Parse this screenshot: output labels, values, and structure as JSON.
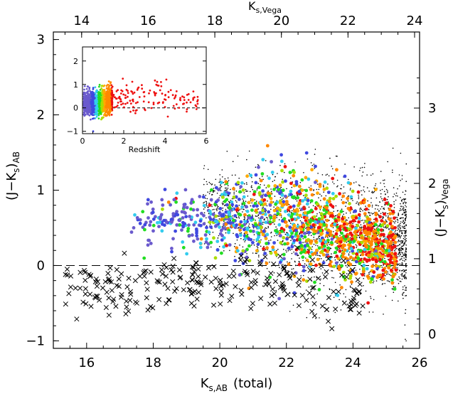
{
  "chart_data": [
    {
      "type": "scatter",
      "role": "main",
      "xlabel": "K",
      "xlabel_sub": "s,AB",
      "xlabel_suffix": "(total)",
      "ylabel": "(J−K",
      "ylabel_sub": "s",
      "ylabel_close": ")",
      "ylabel_sub2": "AB",
      "xlim": [
        15,
        26
      ],
      "ylim": [
        -1.1,
        3.1
      ],
      "xticks": [
        "16",
        "18",
        "20",
        "22",
        "24",
        "26"
      ],
      "yticks": [
        "−1",
        "0",
        "1",
        "2",
        "3"
      ],
      "top_axis": {
        "label": "K",
        "label_sub": "s,Vega",
        "offset_from_bottom_axis": -1.85,
        "ticks": [
          "14",
          "16",
          "18",
          "20",
          "22",
          "24"
        ]
      },
      "right_axis": {
        "label": "(J−K",
        "label_sub": "s",
        "label_close": ")",
        "label_sub2": "Vega",
        "offset_from_left_axis": 0.91,
        "ticks": [
          "0",
          "1",
          "2",
          "3"
        ]
      },
      "reference_line_y": 0,
      "series": [
        {
          "marker": "small black dot",
          "color": "#000000",
          "count": 2000,
          "x_range": [
            19.5,
            25.6
          ],
          "y_mean": [
            [
              20,
              0.8
            ],
            [
              22,
              0.5
            ],
            [
              24,
              0.4
            ],
            [
              25.5,
              0.3
            ]
          ],
          "y_spread": [
            [
              20,
              0.35
            ],
            [
              22,
              0.55
            ],
            [
              24,
              0.6
            ],
            [
              25.5,
              0.55
            ]
          ],
          "y_clip": [
            -1.0,
            2.7
          ]
        },
        {
          "marker": "colored filled circle",
          "color_by": "redshift",
          "count": 1300,
          "x_range": [
            17.2,
            25.3
          ],
          "y_mean": [
            [
              18,
              0.55
            ],
            [
              20,
              0.65
            ],
            [
              22,
              0.6
            ],
            [
              24,
              0.35
            ],
            [
              25,
              0.25
            ]
          ],
          "y_spread": [
            [
              18,
              0.25
            ],
            [
              20,
              0.35
            ],
            [
              22,
              0.45
            ],
            [
              24,
              0.4
            ],
            [
              25,
              0.35
            ]
          ],
          "y_clip": [
            -0.7,
            2.1
          ]
        },
        {
          "marker": "black x",
          "color": "#000000",
          "count": 260,
          "x_range": [
            15.2,
            24.3
          ],
          "y_mean": [
            [
              15.5,
              -0.25
            ],
            [
              18,
              -0.3
            ],
            [
              20.5,
              -0.2
            ],
            [
              23,
              -0.25
            ],
            [
              24.2,
              -0.5
            ]
          ],
          "y_spread": [
            [
              15.5,
              0.25
            ],
            [
              18,
              0.22
            ],
            [
              20.5,
              0.2
            ],
            [
              23,
              0.25
            ],
            [
              24.2,
              0.3
            ]
          ],
          "y_clip": [
            -1.0,
            0.3
          ]
        }
      ],
      "redshift_colormap": [
        {
          "z_max": 0.4,
          "color": "#6a5acd"
        },
        {
          "z_max": 0.6,
          "color": "#3f48e0"
        },
        {
          "z_max": 0.75,
          "color": "#33ccee"
        },
        {
          "z_max": 0.9,
          "color": "#22dd22"
        },
        {
          "z_max": 1.0,
          "color": "#aadd00"
        },
        {
          "z_max": 1.1,
          "color": "#ffaa00"
        },
        {
          "z_max": 1.4,
          "color": "#ff8800"
        },
        {
          "z_max": 10,
          "color": "#ee1111"
        }
      ]
    },
    {
      "type": "scatter",
      "role": "inset",
      "xlabel": "Redshift",
      "xlim": [
        0,
        6
      ],
      "ylim": [
        -1.1,
        2.6
      ],
      "xticks": [
        "0",
        "2",
        "4",
        "6"
      ],
      "yticks": [
        "−1",
        "0",
        "1",
        "2"
      ],
      "reference_line_y": 0,
      "x_range": [
        0.05,
        5.6
      ],
      "count": 1300,
      "color_by": "redshift",
      "y_mean": [
        [
          0.3,
          0.2
        ],
        [
          1.0,
          0.25
        ],
        [
          2.0,
          0.45
        ],
        [
          3.5,
          0.5
        ],
        [
          5.5,
          0.3
        ]
      ],
      "y_spread": [
        [
          0.3,
          0.35
        ],
        [
          1.0,
          0.4
        ],
        [
          2.0,
          0.45
        ],
        [
          3.5,
          0.5
        ],
        [
          5.5,
          0.3
        ]
      ],
      "y_clip": [
        -1.0,
        2.2
      ]
    }
  ]
}
